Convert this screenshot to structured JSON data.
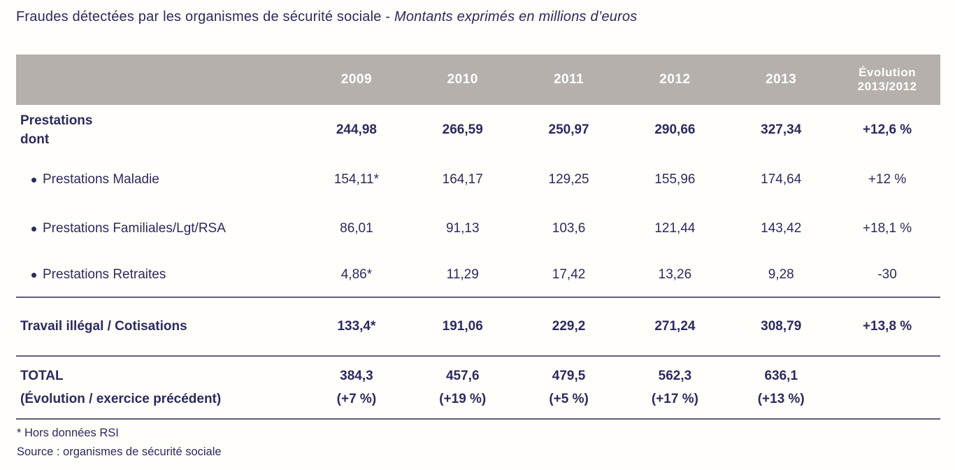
{
  "title": {
    "main": "Fraudes détectées par les organismes de sécurité sociale - ",
    "subtitle": "Montants exprimés en millions d’euros"
  },
  "colors": {
    "text_navy": "#2b2a5e",
    "header_band_gray": "#b5b0ac",
    "header_text": "#ffffff",
    "rule_slate": "#5e5d7d",
    "background": "#fffefa"
  },
  "bullet_glyph": "",
  "table": {
    "header": {
      "years": [
        "2009",
        "2010",
        "2011",
        "2012",
        "2013"
      ],
      "evolution_line1": "Évolution",
      "evolution_line2": "2013/2012"
    },
    "rows": [
      {
        "label_line1": "Prestations",
        "label_line2": "dont",
        "values": [
          "244,98",
          "266,59",
          "250,97",
          "290,66",
          "327,34",
          "+12,6 %"
        ]
      },
      {
        "label": "Prestations Maladie",
        "values": [
          "154,11*",
          "164,17",
          "129,25",
          "155,96",
          "174,64",
          "+12 %"
        ]
      },
      {
        "label": "Prestations Familiales/Lgt/RSA",
        "values": [
          "86,01",
          "91,13",
          "103,6",
          "121,44",
          "143,42",
          "+18,1 %"
        ]
      },
      {
        "label": "Prestations Retraites",
        "values": [
          "4,86*",
          "11,29",
          "17,42",
          "13,26",
          "9,28",
          "-30"
        ]
      },
      {
        "label": "Travail illégal / Cotisations",
        "values": [
          "133,4*",
          "191,06",
          "229,2",
          "271,24",
          "308,79",
          "+13,8 %"
        ]
      },
      {
        "label_line1": "TOTAL",
        "label_line2": "(Évolution / exercice précédent)",
        "values_line1": [
          "384,3",
          "457,6",
          "479,5",
          "562,3",
          "636,1"
        ],
        "values_line2": [
          "(+7 %)",
          "(+19 %)",
          "(+5 %)",
          "(+17 %)",
          "(+13 %)"
        ]
      }
    ]
  },
  "footnotes": {
    "asterisk_note": "* Hors données RSI",
    "source_note": "Source : organismes de sécurité sociale"
  },
  "chart_data": {
    "type": "table",
    "title": "Fraudes détectées par les organismes de sécurité sociale - Montants exprimés en millions d'euros",
    "columns": [
      "2009",
      "2010",
      "2011",
      "2012",
      "2013",
      "Évolution 2013/2012"
    ],
    "rows": [
      {
        "label": "Prestations dont",
        "values": [
          244.98,
          266.59,
          250.97,
          290.66,
          327.34
        ],
        "evolution": "+12,6 %"
      },
      {
        "label": "Prestations Maladie",
        "values": [
          154.11,
          164.17,
          129.25,
          155.96,
          174.64
        ],
        "evolution": "+12 %"
      },
      {
        "label": "Prestations Familiales/Lgt/RSA",
        "values": [
          86.01,
          91.13,
          103.6,
          121.44,
          143.42
        ],
        "evolution": "+18,1 %"
      },
      {
        "label": "Prestations Retraites",
        "values": [
          4.86,
          11.29,
          17.42,
          13.26,
          9.28
        ],
        "evolution": "-30"
      },
      {
        "label": "Travail illégal / Cotisations",
        "values": [
          133.4,
          191.06,
          229.2,
          271.24,
          308.79
        ],
        "evolution": "+13,8 %"
      },
      {
        "label": "TOTAL (Évolution / exercice précédent)",
        "values": [
          384.3,
          457.6,
          479.5,
          562.3,
          636.1
        ],
        "evolution_per_year": [
          "+7 %",
          "+19 %",
          "+5 %",
          "+17 %",
          "+13 %"
        ]
      }
    ],
    "notes": [
      "* Hors données RSI",
      "Source : organismes de sécurité sociale"
    ]
  }
}
